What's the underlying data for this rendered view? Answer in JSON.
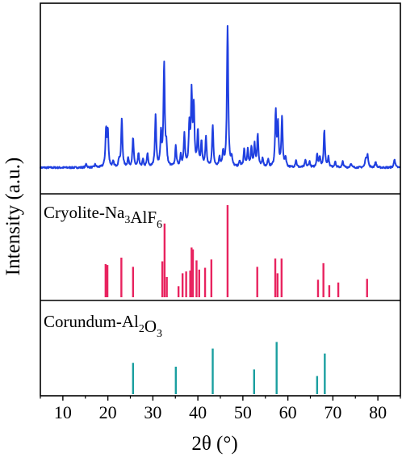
{
  "chart_data": {
    "type": "line",
    "xlabel": "2θ (°)",
    "ylabel": "Intensity (a.u.)",
    "xlim": [
      5,
      85
    ],
    "x_ticks": [
      10,
      20,
      30,
      40,
      50,
      60,
      70,
      80
    ],
    "grid": false,
    "panels": [
      {
        "name": "measured",
        "type": "line",
        "color": "#1f3fe0",
        "baseline": 0.03,
        "peaks": [
          [
            15.2,
            0.025
          ],
          [
            17.2,
            0.02
          ],
          [
            19.6,
            0.25
          ],
          [
            20.0,
            0.24
          ],
          [
            21.2,
            0.035
          ],
          [
            22.5,
            0.05
          ],
          [
            23.1,
            0.33
          ],
          [
            24.5,
            0.06
          ],
          [
            25.6,
            0.2
          ],
          [
            26.8,
            0.09
          ],
          [
            27.8,
            0.05
          ],
          [
            28.8,
            0.09
          ],
          [
            30.6,
            0.35
          ],
          [
            31.8,
            0.22
          ],
          [
            32.5,
            0.71
          ],
          [
            33.0,
            0.13
          ],
          [
            35.1,
            0.14
          ],
          [
            36.2,
            0.08
          ],
          [
            37.0,
            0.22
          ],
          [
            38.1,
            0.27
          ],
          [
            38.6,
            0.49
          ],
          [
            39.1,
            0.4
          ],
          [
            40.0,
            0.24
          ],
          [
            40.8,
            0.17
          ],
          [
            41.8,
            0.2
          ],
          [
            43.3,
            0.28
          ],
          [
            44.8,
            0.06
          ],
          [
            45.6,
            0.1
          ],
          [
            46.6,
            0.99
          ],
          [
            47.5,
            0.06
          ],
          [
            49.3,
            0.04
          ],
          [
            50.3,
            0.12
          ],
          [
            51.1,
            0.12
          ],
          [
            51.9,
            0.13
          ],
          [
            52.6,
            0.15
          ],
          [
            53.3,
            0.22
          ],
          [
            54.4,
            0.06
          ],
          [
            55.6,
            0.05
          ],
          [
            57.3,
            0.37
          ],
          [
            57.8,
            0.28
          ],
          [
            58.7,
            0.34
          ],
          [
            59.5,
            0.06
          ],
          [
            61.8,
            0.05
          ],
          [
            63.9,
            0.05
          ],
          [
            64.8,
            0.04
          ],
          [
            66.5,
            0.09
          ],
          [
            67.1,
            0.07
          ],
          [
            68.1,
            0.25
          ],
          [
            69.0,
            0.07
          ],
          [
            70.5,
            0.04
          ],
          [
            72.2,
            0.04
          ],
          [
            74.0,
            0.03
          ],
          [
            77.3,
            0.06
          ],
          [
            77.7,
            0.09
          ],
          [
            79.5,
            0.04
          ],
          [
            83.7,
            0.06
          ]
        ]
      },
      {
        "name": "cryolite",
        "type": "stick",
        "label_parts": [
          {
            "text": "Cryolite-Na",
            "sub": false
          },
          {
            "text": "3",
            "sub": true
          },
          {
            "text": "AlF",
            "sub": false
          },
          {
            "text": "6",
            "sub": true
          }
        ],
        "color": "#e8235f",
        "lines": [
          [
            19.5,
            0.36
          ],
          [
            19.9,
            0.35
          ],
          [
            23.0,
            0.43
          ],
          [
            25.6,
            0.33
          ],
          [
            32.1,
            0.39
          ],
          [
            32.6,
            0.8
          ],
          [
            33.1,
            0.22
          ],
          [
            35.7,
            0.12
          ],
          [
            36.6,
            0.26
          ],
          [
            37.4,
            0.28
          ],
          [
            38.3,
            0.29
          ],
          [
            38.6,
            0.54
          ],
          [
            38.9,
            0.52
          ],
          [
            39.7,
            0.4
          ],
          [
            40.3,
            0.3
          ],
          [
            41.6,
            0.32
          ],
          [
            43.0,
            0.41
          ],
          [
            46.6,
            1.0
          ],
          [
            53.2,
            0.33
          ],
          [
            57.2,
            0.42
          ],
          [
            57.7,
            0.26
          ],
          [
            58.6,
            0.42
          ],
          [
            66.7,
            0.19
          ],
          [
            67.9,
            0.37
          ],
          [
            69.2,
            0.13
          ],
          [
            71.2,
            0.16
          ],
          [
            77.6,
            0.2
          ]
        ]
      },
      {
        "name": "corundum",
        "type": "stick",
        "label_parts": [
          {
            "text": "Corundum-Al",
            "sub": false
          },
          {
            "text": "2",
            "sub": true
          },
          {
            "text": "O",
            "sub": false
          },
          {
            "text": "3",
            "sub": true
          }
        ],
        "color": "#1a9fa0",
        "lines": [
          [
            25.6,
            0.57
          ],
          [
            35.1,
            0.5
          ],
          [
            43.3,
            0.83
          ],
          [
            52.5,
            0.45
          ],
          [
            57.5,
            0.95
          ],
          [
            66.5,
            0.33
          ],
          [
            68.2,
            0.74
          ]
        ]
      }
    ]
  }
}
